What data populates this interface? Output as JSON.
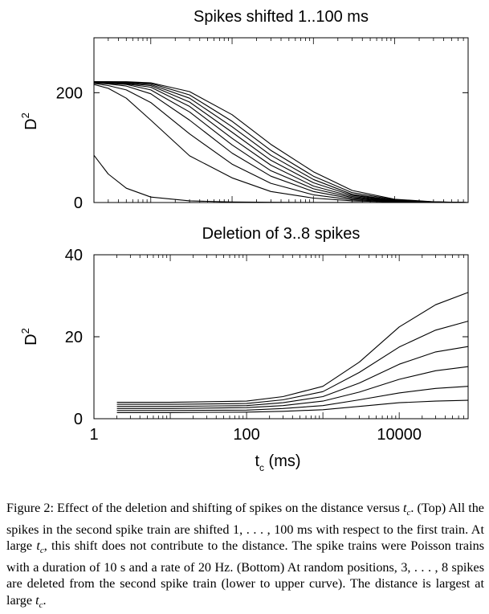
{
  "chart_data": [
    {
      "type": "line",
      "title": "Spikes shifted 1..100 ms",
      "xlabel": "",
      "ylabel": "D",
      "ylabel_superscript": "2",
      "x_scale": "log",
      "xlim": [
        2,
        80000
      ],
      "ylim": [
        0,
        300
      ],
      "y_ticks": [
        {
          "value": 0,
          "label": "0"
        },
        {
          "value": 200,
          "label": "200"
        }
      ],
      "series": [
        {
          "x": [
            2,
            3,
            5,
            10,
            30,
            100,
            300,
            1000,
            3000,
            10000,
            30000,
            80000
          ],
          "values": [
            86,
            52,
            26,
            10,
            3,
            1,
            0.5,
            0.2,
            0.1,
            0,
            0,
            0
          ]
        },
        {
          "x": [
            2,
            3,
            5,
            10,
            30,
            100,
            300,
            1000,
            3000,
            10000,
            30000,
            80000
          ],
          "values": [
            215,
            208,
            190,
            150,
            85,
            45,
            20,
            8,
            3,
            1,
            0.3,
            0
          ]
        },
        {
          "x": [
            2,
            3,
            5,
            10,
            30,
            100,
            300,
            1000,
            3000,
            10000,
            30000,
            80000
          ],
          "values": [
            217,
            213,
            205,
            182,
            125,
            70,
            35,
            14,
            5,
            1.5,
            0.5,
            0
          ]
        },
        {
          "x": [
            2,
            3,
            5,
            10,
            30,
            100,
            300,
            1000,
            3000,
            10000,
            30000,
            80000
          ],
          "values": [
            218,
            216,
            212,
            198,
            150,
            90,
            48,
            20,
            7,
            2,
            0.5,
            0
          ]
        },
        {
          "x": [
            2,
            3,
            5,
            10,
            30,
            100,
            300,
            1000,
            3000,
            10000,
            30000,
            80000
          ],
          "values": [
            219,
            217,
            215,
            205,
            165,
            105,
            58,
            25,
            9,
            2.5,
            0.7,
            0
          ]
        },
        {
          "x": [
            2,
            3,
            5,
            10,
            30,
            100,
            300,
            1000,
            3000,
            10000,
            30000,
            80000
          ],
          "values": [
            219,
            218,
            216,
            210,
            175,
            117,
            68,
            30,
            11,
            3,
            0.8,
            0
          ]
        },
        {
          "x": [
            2,
            3,
            5,
            10,
            30,
            100,
            300,
            1000,
            3000,
            10000,
            30000,
            80000
          ],
          "values": [
            220,
            219,
            217,
            213,
            183,
            128,
            77,
            36,
            13,
            3.5,
            1,
            0
          ]
        },
        {
          "x": [
            2,
            3,
            5,
            10,
            30,
            100,
            300,
            1000,
            3000,
            10000,
            30000,
            80000
          ],
          "values": [
            220,
            219,
            218,
            215,
            190,
            138,
            86,
            42,
            15,
            4,
            1,
            0
          ]
        },
        {
          "x": [
            2,
            3,
            5,
            10,
            30,
            100,
            300,
            1000,
            3000,
            10000,
            30000,
            80000
          ],
          "values": [
            220,
            220,
            219,
            217,
            196,
            148,
            95,
            48,
            18,
            5,
            1.2,
            0
          ]
        },
        {
          "x": [
            2,
            3,
            5,
            10,
            30,
            100,
            300,
            1000,
            3000,
            10000,
            30000,
            80000
          ],
          "values": [
            220,
            220,
            220,
            218,
            202,
            160,
            106,
            56,
            22,
            6,
            1.5,
            0
          ]
        }
      ]
    },
    {
      "type": "line",
      "title": "Deletion of 3..8 spikes",
      "xlabel": "t",
      "xlabel_subscript": "c",
      "xlabel_unit": " (ms)",
      "ylabel": "D",
      "ylabel_superscript": "2",
      "x_scale": "log",
      "xlim": [
        1,
        80000
      ],
      "ylim": [
        0,
        40
      ],
      "x_ticks": [
        {
          "value": 1,
          "label": "1"
        },
        {
          "value": 100,
          "label": "100"
        },
        {
          "value": 10000,
          "label": "10000"
        }
      ],
      "y_ticks": [
        {
          "value": 0,
          "label": "0"
        },
        {
          "value": 20,
          "label": "20"
        },
        {
          "value": 40,
          "label": "40"
        }
      ],
      "series": [
        {
          "x": [
            2,
            10,
            100,
            300,
            1000,
            3000,
            10000,
            30000,
            80000
          ],
          "values": [
            1.5,
            1.5,
            1.6,
            1.8,
            2.2,
            3.0,
            3.9,
            4.3,
            4.5
          ]
        },
        {
          "x": [
            2,
            10,
            100,
            300,
            1000,
            3000,
            10000,
            30000,
            80000
          ],
          "values": [
            2.0,
            2.0,
            2.1,
            2.5,
            3.2,
            4.6,
            6.3,
            7.4,
            7.9
          ]
        },
        {
          "x": [
            2,
            10,
            100,
            300,
            1000,
            3000,
            10000,
            30000,
            80000
          ],
          "values": [
            2.5,
            2.5,
            2.7,
            3.2,
            4.3,
            6.5,
            9.6,
            11.7,
            12.7
          ]
        },
        {
          "x": [
            2,
            10,
            100,
            300,
            1000,
            3000,
            10000,
            30000,
            80000
          ],
          "values": [
            3.0,
            3.0,
            3.2,
            3.9,
            5.4,
            8.7,
            13.3,
            16.3,
            17.6
          ]
        },
        {
          "x": [
            2,
            10,
            100,
            300,
            1000,
            3000,
            10000,
            30000,
            80000
          ],
          "values": [
            3.5,
            3.5,
            3.7,
            4.6,
            6.6,
            11.3,
            17.5,
            21.6,
            23.8
          ]
        },
        {
          "x": [
            2,
            10,
            100,
            300,
            1000,
            3000,
            10000,
            30000,
            80000
          ],
          "values": [
            4.0,
            4.0,
            4.3,
            5.4,
            7.9,
            13.8,
            22.4,
            27.8,
            30.8
          ]
        }
      ]
    }
  ],
  "caption": {
    "label": "Figure 2:",
    "p1": " Effect of the deletion and shifting of spikes on the distance versus ",
    "v1": "t",
    "v1_sub": "c",
    "p2": ". (Top) All the spikes in the second spike train are shifted 1, . . . , 100 ms with respect to the first train. At large ",
    "v2": "t",
    "v2_sub": "c",
    "p3": ", this shift does not contribute to the distance. The spike trains were Poisson trains with a duration of 10 s and a rate of 20 Hz. (Bottom) At random positions, 3, . . . , 8 spikes are deleted from the second spike train (lower to upper curve). The distance is largest at large ",
    "v3": "t",
    "v3_sub": "c",
    "p4": "."
  }
}
